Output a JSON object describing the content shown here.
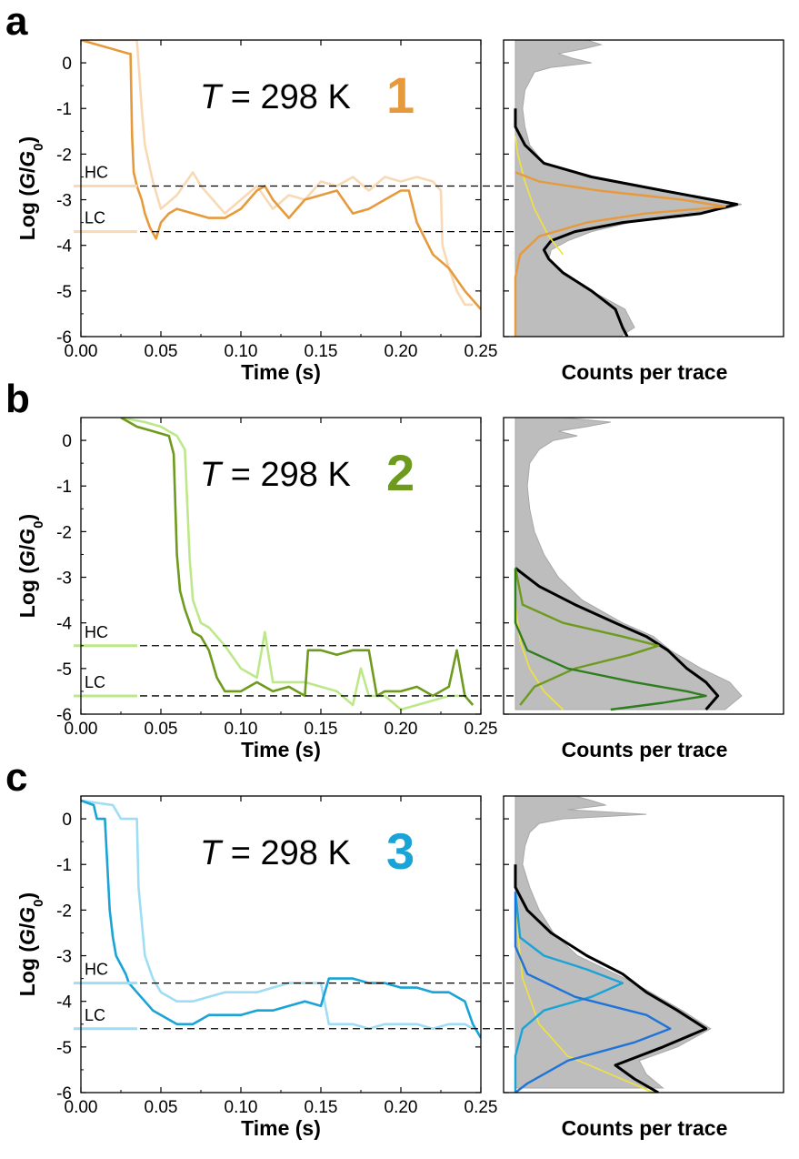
{
  "chart_data": [
    {
      "type": "line",
      "panel_label": "a",
      "annotation_temperature_symbol": "T",
      "annotation_temperature_value": " = 298 K",
      "compound_number": "1",
      "compound_color": "#E69A3C",
      "light_color": "#F8D9B4",
      "xlabel": "Time (s)",
      "ylabel_prefix": "Log (",
      "ylabel_G": "G",
      "ylabel_slash": "/",
      "ylabel_G0": "G",
      "ylabel_sub": "0",
      "ylabel_suffix": ")",
      "xlim": [
        0,
        0.25
      ],
      "ylim": [
        -6,
        0.5
      ],
      "xticks": [
        "0.00",
        "0.05",
        "0.10",
        "0.15",
        "0.20",
        "0.25"
      ],
      "yticks": [
        "0",
        "-1",
        "-2",
        "-3",
        "-4",
        "-5",
        "-6"
      ],
      "hc_label": "HC",
      "hc_value": -2.7,
      "lc_label": "LC",
      "lc_value": -3.7,
      "hist_xlabel": "Counts per trace",
      "series": [
        {
          "style": "dark",
          "x": [
            0,
            0.03,
            0.031,
            0.032,
            0.033,
            0.035,
            0.038,
            0.04,
            0.043,
            0.047,
            0.05,
            0.055,
            0.06,
            0.07,
            0.08,
            0.09,
            0.1,
            0.11,
            0.115,
            0.12,
            0.13,
            0.14,
            0.15,
            0.16,
            0.17,
            0.18,
            0.19,
            0.2,
            0.205,
            0.21,
            0.22,
            0.23,
            0.24,
            0.25
          ],
          "y": [
            0.5,
            0.2,
            0.2,
            -1.6,
            -2.4,
            -2.7,
            -3.0,
            -3.3,
            -3.6,
            -3.85,
            -3.5,
            -3.3,
            -3.2,
            -3.3,
            -3.4,
            -3.4,
            -3.2,
            -2.8,
            -2.7,
            -3.0,
            -3.4,
            -3.0,
            -2.9,
            -2.8,
            -3.3,
            -3.2,
            -3.0,
            -2.8,
            -2.8,
            -3.5,
            -4.2,
            -4.5,
            -5.0,
            -5.4
          ]
        },
        {
          "style": "light",
          "x": [
            0,
            0.035,
            0.038,
            0.04,
            0.045,
            0.05,
            0.06,
            0.07,
            0.075,
            0.08,
            0.09,
            0.1,
            0.11,
            0.12,
            0.13,
            0.14,
            0.15,
            0.16,
            0.17,
            0.18,
            0.19,
            0.2,
            0.21,
            0.22,
            0.225,
            0.226,
            0.23,
            0.235,
            0.24,
            0.245
          ],
          "y": [
            0.5,
            0.5,
            -1.0,
            -1.8,
            -2.6,
            -3.2,
            -2.9,
            -2.4,
            -2.7,
            -2.9,
            -3.3,
            -3.0,
            -2.7,
            -3.2,
            -2.9,
            -3.0,
            -2.6,
            -2.7,
            -2.5,
            -2.8,
            -2.5,
            -2.6,
            -2.5,
            -2.6,
            -2.8,
            -4.0,
            -4.5,
            -5.0,
            -5.3,
            -5.3
          ]
        }
      ],
      "histogram": {
        "logG": [
          0.5,
          0.4,
          0.3,
          0.2,
          0.1,
          0.0,
          -0.1,
          -0.2,
          -0.4,
          -0.6,
          -1.0,
          -1.4,
          -1.8,
          -2.2,
          -2.5,
          -2.7,
          -2.9,
          -3.0,
          -3.1,
          -3.2,
          -3.3,
          -3.5,
          -3.7,
          -3.9,
          -4.1,
          -4.3,
          -4.6,
          -5.0,
          -5.4,
          -5.8,
          -6.0
        ],
        "counts": [
          0.3,
          0.36,
          0.28,
          0.18,
          0.24,
          0.32,
          0.15,
          0.08,
          0.06,
          0.04,
          0.03,
          0.04,
          0.06,
          0.12,
          0.3,
          0.5,
          0.72,
          0.85,
          0.95,
          0.88,
          0.7,
          0.48,
          0.32,
          0.22,
          0.15,
          0.14,
          0.19,
          0.32,
          0.46,
          0.5,
          0.44
        ]
      },
      "fits": [
        {
          "style": "fit_total",
          "logG": [
            -1.0,
            -1.4,
            -1.8,
            -2.2,
            -2.5,
            -2.8,
            -3.1,
            -3.3,
            -3.5,
            -3.7,
            -3.9,
            -4.1,
            -4.3,
            -4.6,
            -5.0,
            -5.4,
            -5.8,
            -6.0
          ],
          "counts": [
            0.0,
            0.0,
            0.04,
            0.12,
            0.32,
            0.62,
            0.93,
            0.78,
            0.45,
            0.25,
            0.15,
            0.12,
            0.14,
            0.2,
            0.32,
            0.42,
            0.45,
            0.47
          ]
        },
        {
          "style": "fit_yellow",
          "logG": [
            -1.6,
            -2.0,
            -2.6,
            -3.2,
            -3.8,
            -4.2
          ],
          "counts": [
            0.0,
            0.01,
            0.04,
            0.08,
            0.14,
            0.2
          ]
        },
        {
          "style": "fit_colored",
          "logG": [
            -6.0,
            -4.7,
            -4.2,
            -3.8,
            -3.5,
            -3.3,
            -3.15,
            -3.0,
            -2.8,
            -2.6,
            -2.4
          ],
          "counts": [
            0.0,
            0.0,
            0.02,
            0.1,
            0.3,
            0.55,
            0.88,
            0.7,
            0.35,
            0.1,
            0.0
          ]
        }
      ]
    },
    {
      "type": "line",
      "panel_label": "b",
      "annotation_temperature_symbol": "T",
      "annotation_temperature_value": " = 298 K",
      "compound_number": "2",
      "compound_color": "#6E9A1E",
      "light_color": "#BDE88A",
      "xlabel": "Time (s)",
      "ylabel_prefix": "Log (",
      "ylabel_G": "G",
      "ylabel_slash": "/",
      "ylabel_G0": "G",
      "ylabel_sub": "0",
      "ylabel_suffix": ")",
      "xlim": [
        0,
        0.25
      ],
      "ylim": [
        -6,
        0.5
      ],
      "xticks": [
        "0.00",
        "0.05",
        "0.10",
        "0.15",
        "0.20",
        "0.25"
      ],
      "yticks": [
        "0",
        "-1",
        "-2",
        "-3",
        "-4",
        "-5",
        "-6"
      ],
      "hc_label": "HC",
      "hc_value": -4.5,
      "lc_label": "LC",
      "lc_value": -5.6,
      "hist_xlabel": "Counts per trace",
      "series": [
        {
          "style": "dark",
          "x": [
            0.025,
            0.035,
            0.045,
            0.055,
            0.058,
            0.06,
            0.062,
            0.065,
            0.068,
            0.07,
            0.075,
            0.08,
            0.085,
            0.09,
            0.1,
            0.11,
            0.12,
            0.13,
            0.14,
            0.142,
            0.15,
            0.16,
            0.17,
            0.18,
            0.185,
            0.19,
            0.2,
            0.21,
            0.22,
            0.23,
            0.235,
            0.24,
            0.245
          ],
          "y": [
            0.5,
            0.3,
            0.2,
            0.1,
            -0.3,
            -2.5,
            -3.3,
            -3.7,
            -4.0,
            -4.2,
            -4.3,
            -4.6,
            -5.2,
            -5.5,
            -5.5,
            -5.3,
            -5.5,
            -5.4,
            -5.6,
            -4.6,
            -4.6,
            -4.7,
            -4.6,
            -4.6,
            -5.6,
            -5.5,
            -5.5,
            -5.4,
            -5.6,
            -5.4,
            -4.6,
            -5.6,
            -5.8
          ]
        },
        {
          "style": "light",
          "x": [
            0.025,
            0.04,
            0.05,
            0.06,
            0.065,
            0.068,
            0.07,
            0.075,
            0.08,
            0.085,
            0.09,
            0.1,
            0.11,
            0.115,
            0.12,
            0.13,
            0.14,
            0.15,
            0.16,
            0.17,
            0.175,
            0.18,
            0.19,
            0.2,
            0.21,
            0.22,
            0.23,
            0.24
          ],
          "y": [
            0.5,
            0.4,
            0.3,
            0.1,
            -0.2,
            -2.6,
            -3.5,
            -4.0,
            -4.1,
            -4.3,
            -4.5,
            -5.0,
            -5.2,
            -4.2,
            -5.3,
            -5.3,
            -5.3,
            -5.4,
            -5.5,
            -5.8,
            -5.0,
            -5.6,
            -5.6,
            -5.9,
            -5.8,
            -5.7,
            -5.6,
            -5.6
          ]
        }
      ],
      "histogram": {
        "logG": [
          0.5,
          0.4,
          0.3,
          0.2,
          0.1,
          0.0,
          -0.2,
          -0.5,
          -1.0,
          -1.5,
          -2.0,
          -2.5,
          -3.0,
          -3.5,
          -4.0,
          -4.3,
          -4.6,
          -5.0,
          -5.3,
          -5.6,
          -5.9
        ],
        "counts": [
          0.2,
          0.4,
          0.3,
          0.18,
          0.26,
          0.16,
          0.1,
          0.06,
          0.05,
          0.06,
          0.08,
          0.12,
          0.18,
          0.28,
          0.45,
          0.58,
          0.65,
          0.78,
          0.9,
          0.95,
          0.88
        ]
      },
      "fits": [
        {
          "style": "fit_total",
          "logG": [
            -2.8,
            -3.2,
            -3.6,
            -4.0,
            -4.3,
            -4.6,
            -5.0,
            -5.3,
            -5.6,
            -5.9
          ],
          "counts": [
            0.0,
            0.1,
            0.25,
            0.42,
            0.55,
            0.64,
            0.72,
            0.8,
            0.85,
            0.8
          ]
        },
        {
          "style": "fit_yellow",
          "logG": [
            -2.8,
            -3.6,
            -4.4,
            -5.0,
            -5.5,
            -5.9
          ],
          "counts": [
            0.0,
            0.0,
            0.02,
            0.06,
            0.12,
            0.2
          ]
        },
        {
          "style": "fit_colored",
          "logG": [
            -2.8,
            -3.6,
            -4.0,
            -4.3,
            -4.5,
            -4.7,
            -5.0,
            -5.4,
            -5.8
          ],
          "counts": [
            0.0,
            0.03,
            0.2,
            0.45,
            0.6,
            0.48,
            0.25,
            0.08,
            0.02
          ]
        },
        {
          "style": "fit_colored_dark",
          "logG": [
            -2.8,
            -4.0,
            -4.6,
            -5.0,
            -5.3,
            -5.5,
            -5.6,
            -5.75,
            -5.9
          ],
          "counts": [
            0.0,
            0.0,
            0.05,
            0.22,
            0.5,
            0.72,
            0.8,
            0.62,
            0.4
          ]
        }
      ]
    },
    {
      "type": "line",
      "panel_label": "c",
      "annotation_temperature_symbol": "T",
      "annotation_temperature_value": " = 298 K",
      "compound_number": "3",
      "compound_color": "#1AA3D6",
      "light_color": "#9FDDF4",
      "xlabel": "Time (s)",
      "ylabel_prefix": "Log (",
      "ylabel_G": "G",
      "ylabel_slash": "/",
      "ylabel_G0": "G",
      "ylabel_sub": "0",
      "ylabel_suffix": ")",
      "xlim": [
        0,
        0.25
      ],
      "ylim": [
        -6,
        0.5
      ],
      "xticks": [
        "0.00",
        "0.05",
        "0.10",
        "0.15",
        "0.20",
        "0.25"
      ],
      "yticks": [
        "0",
        "-1",
        "-2",
        "-3",
        "-4",
        "-5",
        "-6"
      ],
      "hc_label": "HC",
      "hc_value": -3.6,
      "lc_label": "LC",
      "lc_value": -4.6,
      "hist_xlabel": "Counts per trace",
      "series": [
        {
          "style": "dark",
          "x": [
            0,
            0.008,
            0.01,
            0.015,
            0.018,
            0.02,
            0.022,
            0.025,
            0.028,
            0.03,
            0.035,
            0.04,
            0.045,
            0.05,
            0.055,
            0.06,
            0.07,
            0.08,
            0.09,
            0.1,
            0.11,
            0.12,
            0.13,
            0.14,
            0.15,
            0.155,
            0.16,
            0.17,
            0.18,
            0.19,
            0.2,
            0.21,
            0.22,
            0.23,
            0.24,
            0.245,
            0.25
          ],
          "y": [
            0.4,
            0.3,
            0.0,
            0.0,
            -2.0,
            -2.6,
            -3.0,
            -3.2,
            -3.4,
            -3.6,
            -3.8,
            -4.0,
            -4.2,
            -4.3,
            -4.4,
            -4.5,
            -4.5,
            -4.3,
            -4.3,
            -4.3,
            -4.2,
            -4.2,
            -4.1,
            -4.0,
            -4.1,
            -3.5,
            -3.5,
            -3.5,
            -3.6,
            -3.6,
            -3.7,
            -3.7,
            -3.8,
            -3.8,
            -4.0,
            -4.5,
            -4.8
          ]
        },
        {
          "style": "light",
          "x": [
            0,
            0.02,
            0.025,
            0.03,
            0.035,
            0.036,
            0.04,
            0.045,
            0.05,
            0.06,
            0.07,
            0.08,
            0.09,
            0.1,
            0.11,
            0.12,
            0.13,
            0.14,
            0.15,
            0.155,
            0.16,
            0.17,
            0.18,
            0.19,
            0.2,
            0.21,
            0.22,
            0.23,
            0.24,
            0.245
          ],
          "y": [
            0.4,
            0.3,
            0.0,
            0.0,
            0.0,
            -1.5,
            -3.0,
            -3.5,
            -3.8,
            -4.0,
            -4.0,
            -3.9,
            -3.8,
            -3.8,
            -3.8,
            -3.7,
            -3.6,
            -3.6,
            -3.6,
            -4.5,
            -4.5,
            -4.5,
            -4.6,
            -4.5,
            -4.5,
            -4.5,
            -4.6,
            -4.5,
            -4.5,
            -4.6
          ]
        }
      ],
      "histogram": {
        "logG": [
          0.5,
          0.4,
          0.3,
          0.2,
          0.1,
          0.0,
          -0.1,
          -0.3,
          -0.6,
          -1.0,
          -1.5,
          -2.0,
          -2.5,
          -3.0,
          -3.3,
          -3.6,
          -3.9,
          -4.2,
          -4.6,
          -5.0,
          -5.3,
          -5.6,
          -5.9
        ],
        "counts": [
          0.25,
          0.32,
          0.38,
          0.22,
          0.55,
          0.2,
          0.1,
          0.06,
          0.04,
          0.03,
          0.06,
          0.1,
          0.16,
          0.26,
          0.38,
          0.5,
          0.6,
          0.7,
          0.82,
          0.68,
          0.52,
          0.55,
          0.62
        ]
      },
      "fits": [
        {
          "style": "fit_total",
          "logG": [
            -1.0,
            -1.5,
            -2.0,
            -2.5,
            -3.0,
            -3.4,
            -3.8,
            -4.2,
            -4.6,
            -5.0,
            -5.4,
            -5.7,
            -6.0
          ],
          "counts": [
            0.0,
            0.0,
            0.05,
            0.15,
            0.3,
            0.45,
            0.55,
            0.68,
            0.8,
            0.62,
            0.42,
            0.5,
            0.6
          ]
        },
        {
          "style": "fit_yellow",
          "logG": [
            -1.6,
            -2.5,
            -3.5,
            -4.5,
            -5.2,
            -6.0
          ],
          "counts": [
            0.0,
            0.01,
            0.03,
            0.1,
            0.22,
            0.58
          ]
        },
        {
          "style": "fit_colored",
          "logG": [
            -1.6,
            -2.6,
            -3.0,
            -3.3,
            -3.6,
            -3.9,
            -4.2,
            -4.6,
            -5.2,
            -6.0
          ],
          "counts": [
            0.0,
            0.02,
            0.12,
            0.3,
            0.45,
            0.32,
            0.12,
            0.03,
            0.0,
            0.0
          ]
        },
        {
          "style": "fit_colored_dark",
          "logG": [
            -1.6,
            -2.8,
            -3.4,
            -3.9,
            -4.3,
            -4.6,
            -4.9,
            -5.3,
            -5.8,
            -6.0
          ],
          "counts": [
            0.0,
            0.0,
            0.05,
            0.25,
            0.55,
            0.65,
            0.5,
            0.22,
            0.05,
            0.0
          ]
        }
      ]
    }
  ]
}
